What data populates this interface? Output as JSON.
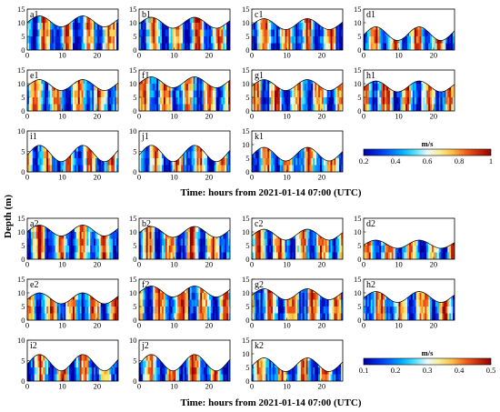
{
  "chart_data": {
    "type": "heatmap",
    "ylabel": "Depth (m)",
    "groups": [
      {
        "id": "group1",
        "xlabel": "Time: hours from 2021-01-14 07:00 (UTC)",
        "colorbar": {
          "label": "m/s",
          "range": [
            0.2,
            1.0
          ],
          "ticks": [
            "0.2",
            "0.4",
            "0.6",
            "0.8",
            "1"
          ]
        },
        "panels": [
          {
            "label": "a1",
            "ymax": 15,
            "surface": {
              "mean": 10.5,
              "amp": 2.0
            }
          },
          {
            "label": "b1",
            "ymax": 15,
            "surface": {
              "mean": 10.0,
              "amp": 2.0
            }
          },
          {
            "label": "c1",
            "ymax": 15,
            "surface": {
              "mean": 9.5,
              "amp": 2.0
            }
          },
          {
            "label": "d1",
            "ymax": 15,
            "surface": {
              "mean": 6.0,
              "amp": 2.5
            }
          },
          {
            "label": "e1",
            "ymax": 15,
            "surface": {
              "mean": 9.5,
              "amp": 2.0
            }
          },
          {
            "label": "f1",
            "ymax": 15,
            "surface": {
              "mean": 10.5,
              "amp": 2.0
            }
          },
          {
            "label": "g1",
            "ymax": 15,
            "surface": {
              "mean": 9.5,
              "amp": 2.0
            }
          },
          {
            "label": "h1",
            "ymax": 15,
            "surface": {
              "mean": 9.0,
              "amp": 2.0
            }
          },
          {
            "label": "i1",
            "ymax": 10,
            "surface": {
              "mean": 4.5,
              "amp": 2.0
            }
          },
          {
            "label": "j1",
            "ymax": 10,
            "surface": {
              "mean": 4.5,
              "amp": 2.0
            }
          },
          {
            "label": "k1",
            "ymax": 15,
            "surface": {
              "mean": 6.5,
              "amp": 2.5
            }
          }
        ]
      },
      {
        "id": "group2",
        "xlabel": "Time: hours from 2021-01-14 07:00 (UTC)",
        "colorbar": {
          "label": "m/s",
          "range": [
            0.1,
            0.5
          ],
          "ticks": [
            "0.1",
            "0.2",
            "0.3",
            "0.4",
            "0.5"
          ]
        },
        "panels": [
          {
            "label": "a2",
            "ymax": 15,
            "surface": {
              "mean": 10.5,
              "amp": 2.0
            }
          },
          {
            "label": "b2",
            "ymax": 15,
            "surface": {
              "mean": 10.0,
              "amp": 2.0
            }
          },
          {
            "label": "c2",
            "ymax": 15,
            "surface": {
              "mean": 9.0,
              "amp": 2.0
            }
          },
          {
            "label": "d2",
            "ymax": 15,
            "surface": {
              "mean": 5.5,
              "amp": 1.5
            }
          },
          {
            "label": "e2",
            "ymax": 15,
            "surface": {
              "mean": 8.0,
              "amp": 2.0
            }
          },
          {
            "label": "f2",
            "ymax": 15,
            "surface": {
              "mean": 10.5,
              "amp": 2.0
            }
          },
          {
            "label": "g2",
            "ymax": 15,
            "surface": {
              "mean": 9.5,
              "amp": 2.0
            }
          },
          {
            "label": "h2",
            "ymax": 15,
            "surface": {
              "mean": 8.5,
              "amp": 2.0
            }
          },
          {
            "label": "i2",
            "ymax": 10,
            "surface": {
              "mean": 4.5,
              "amp": 2.0
            }
          },
          {
            "label": "j2",
            "ymax": 10,
            "surface": {
              "mean": 4.5,
              "amp": 2.0
            }
          },
          {
            "label": "k2",
            "ymax": 15,
            "surface": {
              "mean": 6.0,
              "amp": 2.5
            }
          }
        ]
      }
    ],
    "xlim": [
      0,
      26
    ],
    "xticks": [
      0,
      10,
      20
    ],
    "tidal_period_hours": 12.4,
    "colormap": "jet-like (blue-cyan-white-yellow-red)"
  }
}
